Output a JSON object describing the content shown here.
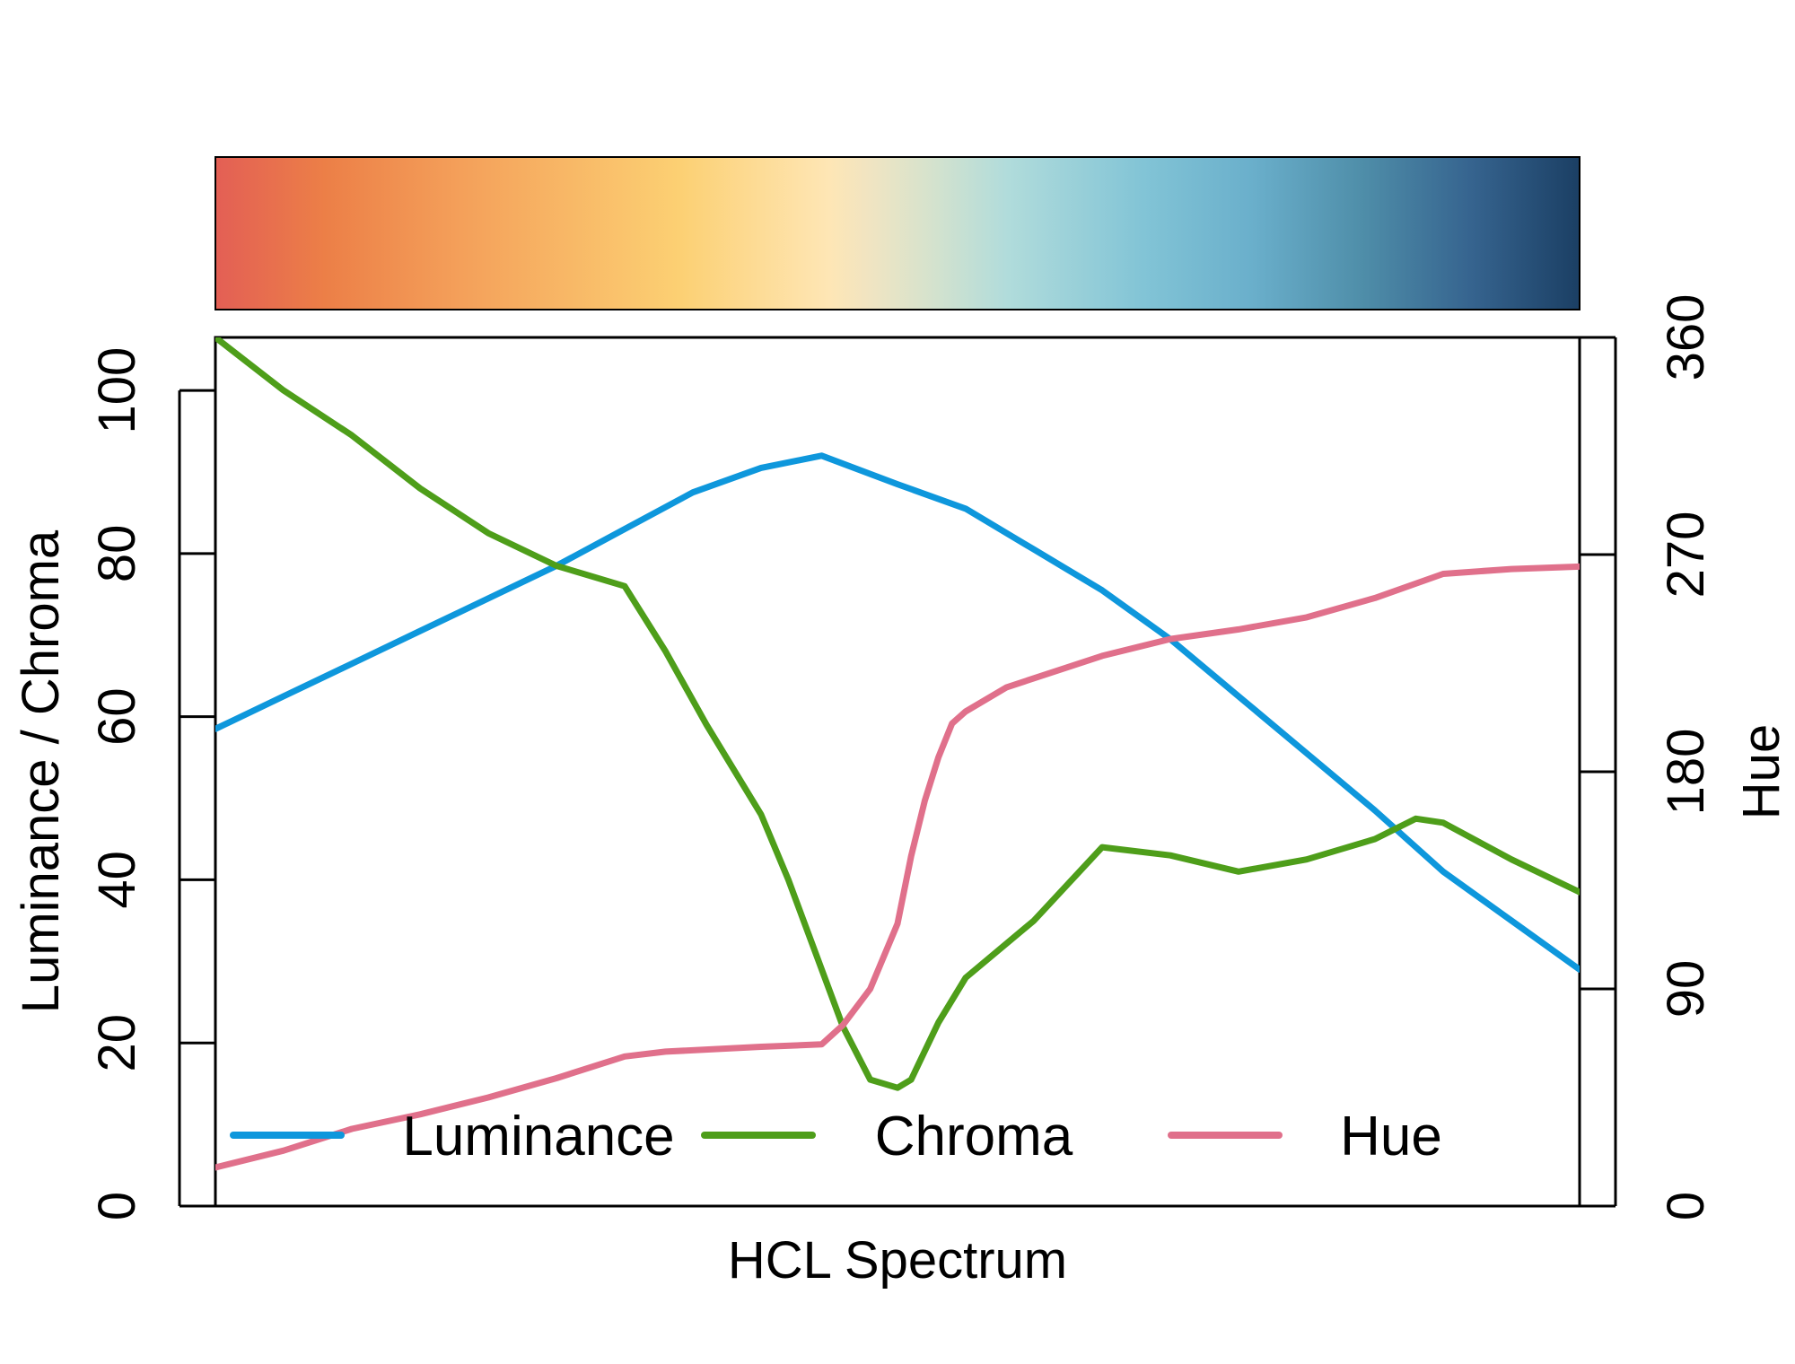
{
  "chart_data": {
    "type": "line",
    "title": "",
    "xlabel": "HCL Spectrum",
    "ylabel_left": "Luminance / Chroma",
    "ylabel_right": "Hue",
    "ylim_left": [
      0,
      100
    ],
    "ylim_right": [
      0,
      360
    ],
    "left_ticks": [
      "0",
      "20",
      "40",
      "60",
      "80",
      "100"
    ],
    "right_ticks": [
      "0",
      "90",
      "180",
      "270",
      "360"
    ],
    "xlim": [
      0,
      1
    ],
    "legend_position": "bottom",
    "colorbar": [
      {
        "pos": 0.0,
        "color": "#E35F55"
      },
      {
        "pos": 0.08,
        "color": "#EC7F47"
      },
      {
        "pos": 0.18,
        "color": "#F4A05A"
      },
      {
        "pos": 0.34,
        "color": "#FCD073"
      },
      {
        "pos": 0.45,
        "color": "#FEE6B5"
      },
      {
        "pos": 0.48,
        "color": "#F0E4C2"
      },
      {
        "pos": 0.52,
        "color": "#D8E3CC"
      },
      {
        "pos": 0.58,
        "color": "#B1DCDB"
      },
      {
        "pos": 0.68,
        "color": "#82C4D6"
      },
      {
        "pos": 0.76,
        "color": "#6AAFCB"
      },
      {
        "pos": 0.84,
        "color": "#4F8EA9"
      },
      {
        "pos": 0.92,
        "color": "#36648F"
      },
      {
        "pos": 1.0,
        "color": "#1B3F64"
      }
    ],
    "series": [
      {
        "name": "Luminance",
        "axis": "left",
        "color": "#0E97DC",
        "x": [
          0,
          0.05,
          0.1,
          0.15,
          0.2,
          0.25,
          0.3,
          0.35,
          0.4,
          0.4444,
          0.5,
          0.55,
          0.6,
          0.65,
          0.7,
          0.75,
          0.8,
          0.85,
          0.9,
          0.95,
          1.0
        ],
        "y": [
          58.5,
          62.5,
          66.5,
          70.5,
          74.5,
          78.5,
          83.0,
          87.5,
          90.5,
          92.0,
          88.5,
          85.5,
          80.5,
          75.5,
          69.5,
          62.5,
          55.5,
          48.5,
          41.0,
          35.0,
          29.0
        ]
      },
      {
        "name": "Chroma",
        "axis": "left",
        "color": "#4E9E1A",
        "x": [
          0,
          0.05,
          0.1,
          0.15,
          0.2,
          0.25,
          0.3,
          0.33,
          0.36,
          0.4,
          0.42,
          0.44,
          0.46,
          0.48,
          0.5,
          0.51,
          0.52,
          0.53,
          0.55,
          0.6,
          0.65,
          0.7,
          0.75,
          0.8,
          0.85,
          0.88,
          0.9,
          0.95,
          1.0
        ],
        "y": [
          106.5,
          100.0,
          94.5,
          88.0,
          82.5,
          78.5,
          76.0,
          68.0,
          59.0,
          48.0,
          40.0,
          31.0,
          22.0,
          15.5,
          14.5,
          15.5,
          19.0,
          22.5,
          28.0,
          35.0,
          44.0,
          43.0,
          41.0,
          42.5,
          45.0,
          47.5,
          47.0,
          42.5,
          38.5
        ]
      },
      {
        "name": "Hue",
        "axis": "right",
        "color": "#E0708B",
        "x": [
          0,
          0.05,
          0.1,
          0.15,
          0.2,
          0.25,
          0.3,
          0.33,
          0.4,
          0.4444,
          0.46,
          0.48,
          0.5,
          0.51,
          0.52,
          0.53,
          0.54,
          0.55,
          0.58,
          0.65,
          0.7,
          0.75,
          0.8,
          0.85,
          0.9,
          0.95,
          1.0
        ],
        "y": [
          16,
          23,
          32,
          38,
          45,
          53,
          62,
          64,
          66,
          67,
          75,
          90,
          117,
          145,
          168,
          186,
          200,
          205,
          215,
          228,
          235,
          239,
          244,
          252,
          262,
          264,
          265
        ]
      }
    ]
  }
}
